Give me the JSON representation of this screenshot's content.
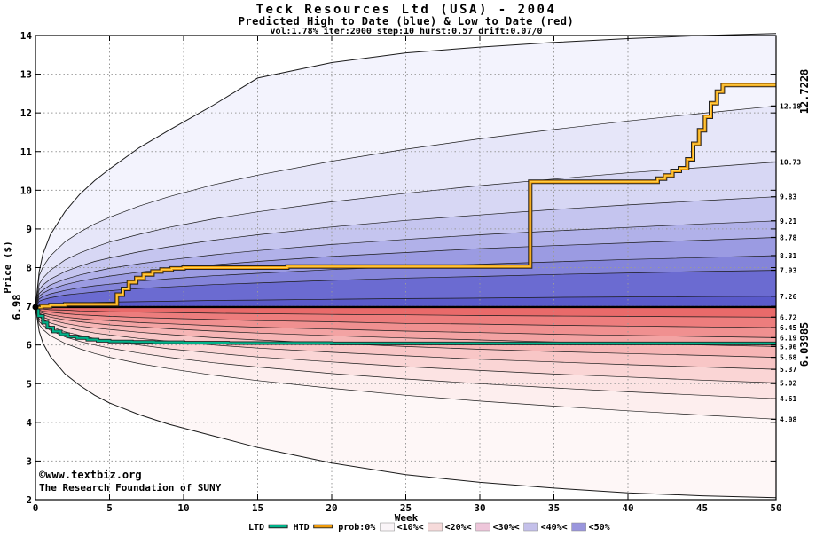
{
  "chart_data": {
    "type": "area",
    "title": "Teck Resources Ltd (USA) - 2004",
    "subtitle": "Predicted High to Date (blue) &  Low to Date (red)",
    "params": "vol:1.78% iter:2000 step:10 hurst:0.57 drift:0.07/0",
    "x_axis": {
      "label": "Week",
      "min": 0,
      "max": 50,
      "ticks": [
        0,
        5,
        10,
        15,
        20,
        25,
        30,
        35,
        40,
        45,
        50
      ]
    },
    "y_axis": {
      "label": "Price ($)",
      "min": 2,
      "max": 14,
      "ticks": [
        2,
        3,
        4,
        5,
        6,
        7,
        8,
        9,
        10,
        11,
        12,
        13,
        14
      ]
    },
    "grid_color": "#9a9a9a",
    "watermark_color": "#2323bb",
    "start_price": 6.98,
    "start_price_label": "6.98",
    "sample_weeks": [
      0,
      0.25,
      0.5,
      1,
      2,
      3,
      4,
      5,
      7,
      9,
      12,
      15,
      20,
      25,
      30,
      35,
      40,
      45,
      50
    ],
    "high_envelope": [
      6.98,
      7.9,
      8.35,
      8.85,
      9.45,
      9.9,
      10.25,
      10.55,
      11.1,
      11.55,
      12.2,
      12.9,
      13.3,
      13.55,
      13.7,
      13.82,
      13.92,
      14.0,
      14.05
    ],
    "high_boundaries": [
      {
        "label": "12.18",
        "values": [
          6.98,
          7.79,
          8.02,
          8.3,
          8.67,
          8.92,
          9.13,
          9.3,
          9.59,
          9.83,
          10.14,
          10.39,
          10.75,
          11.06,
          11.33,
          11.57,
          11.79,
          11.99,
          12.18
        ]
      },
      {
        "label": "10.73",
        "values": [
          6.98,
          7.57,
          7.73,
          7.93,
          8.2,
          8.38,
          8.53,
          8.66,
          8.86,
          9.04,
          9.26,
          9.44,
          9.7,
          9.92,
          10.12,
          10.29,
          10.45,
          10.59,
          10.73
        ]
      },
      {
        "label": "9.83",
        "values": [
          6.98,
          7.43,
          7.55,
          7.7,
          7.9,
          8.04,
          8.16,
          8.25,
          8.41,
          8.54,
          8.71,
          8.85,
          9.05,
          9.22,
          9.36,
          9.5,
          9.62,
          9.73,
          9.83
        ]
      },
      {
        "label": "9.21",
        "values": [
          6.98,
          7.33,
          7.42,
          7.55,
          7.7,
          7.81,
          7.9,
          7.98,
          8.1,
          8.2,
          8.33,
          8.44,
          8.6,
          8.73,
          8.85,
          8.95,
          9.04,
          9.13,
          9.21
        ]
      },
      {
        "label": "8.78",
        "values": [
          6.98,
          7.26,
          7.34,
          7.44,
          7.56,
          7.65,
          7.72,
          7.78,
          7.88,
          7.97,
          8.07,
          8.16,
          8.29,
          8.39,
          8.49,
          8.57,
          8.64,
          8.71,
          8.78
        ]
      },
      {
        "label": "8.31",
        "values": [
          6.98,
          7.19,
          7.25,
          7.32,
          7.41,
          7.48,
          7.53,
          7.57,
          7.65,
          7.71,
          7.79,
          7.85,
          7.95,
          8.02,
          8.09,
          8.15,
          8.21,
          8.26,
          8.31
        ]
      },
      {
        "label": "7.93",
        "values": [
          6.98,
          7.13,
          7.17,
          7.22,
          7.29,
          7.33,
          7.37,
          7.4,
          7.46,
          7.5,
          7.56,
          7.6,
          7.67,
          7.73,
          7.77,
          7.82,
          7.86,
          7.9,
          7.93
        ]
      },
      {
        "label": "7.26",
        "values": [
          6.98,
          7.02,
          7.04,
          7.05,
          7.07,
          7.08,
          7.1,
          7.11,
          7.12,
          7.13,
          7.15,
          7.16,
          7.18,
          7.2,
          7.21,
          7.23,
          7.24,
          7.25,
          7.26
        ]
      }
    ],
    "low_boundaries": [
      {
        "label": "6.72",
        "values": [
          6.98,
          6.94,
          6.93,
          6.91,
          6.9,
          6.88,
          6.87,
          6.86,
          6.85,
          6.84,
          6.82,
          6.81,
          6.79,
          6.78,
          6.76,
          6.75,
          6.74,
          6.73,
          6.72
        ]
      },
      {
        "label": "6.45",
        "values": [
          6.98,
          6.9,
          6.87,
          6.85,
          6.81,
          6.78,
          6.76,
          6.74,
          6.71,
          6.69,
          6.66,
          6.63,
          6.6,
          6.56,
          6.54,
          6.51,
          6.49,
          6.47,
          6.45
        ]
      },
      {
        "label": "6.19",
        "values": [
          6.98,
          6.86,
          6.82,
          6.78,
          6.72,
          6.68,
          6.65,
          6.63,
          6.58,
          6.55,
          6.5,
          6.46,
          6.41,
          6.36,
          6.32,
          6.28,
          6.25,
          6.22,
          6.19
        ]
      },
      {
        "label": "5.96",
        "values": [
          6.98,
          6.82,
          6.78,
          6.72,
          6.65,
          6.6,
          6.56,
          6.52,
          6.47,
          6.42,
          6.36,
          6.31,
          6.24,
          6.18,
          6.13,
          6.08,
          6.04,
          6.0,
          5.96
        ]
      },
      {
        "label": "5.68",
        "values": [
          6.98,
          6.78,
          6.72,
          6.65,
          6.56,
          6.49,
          6.44,
          6.4,
          6.33,
          6.27,
          6.19,
          6.13,
          6.04,
          5.96,
          5.89,
          5.83,
          5.78,
          5.73,
          5.68
        ]
      },
      {
        "label": "5.37",
        "values": [
          6.98,
          6.73,
          6.66,
          6.57,
          6.46,
          6.38,
          6.31,
          6.26,
          6.17,
          6.1,
          6.0,
          5.92,
          5.81,
          5.72,
          5.63,
          5.56,
          5.49,
          5.43,
          5.37
        ]
      },
      {
        "label": "5.02",
        "values": [
          6.98,
          6.67,
          6.59,
          6.48,
          6.34,
          6.25,
          6.17,
          6.1,
          6.0,
          5.9,
          5.79,
          5.69,
          5.56,
          5.44,
          5.34,
          5.25,
          5.17,
          5.09,
          5.02
        ]
      },
      {
        "label": "4.61",
        "values": [
          6.98,
          6.61,
          6.51,
          6.38,
          6.21,
          6.09,
          6.0,
          5.92,
          5.79,
          5.68,
          5.54,
          5.43,
          5.26,
          5.12,
          5.0,
          4.89,
          4.79,
          4.7,
          4.61
        ]
      },
      {
        "label": "4.08",
        "values": [
          6.98,
          6.53,
          6.4,
          6.24,
          6.04,
          5.9,
          5.78,
          5.68,
          5.52,
          5.39,
          5.22,
          5.08,
          4.88,
          4.7,
          4.55,
          4.42,
          4.3,
          4.19,
          4.08
        ]
      }
    ],
    "low_envelope": [
      6.98,
      6.35,
      6.05,
      5.7,
      5.25,
      4.95,
      4.7,
      4.5,
      4.2,
      3.95,
      3.65,
      3.35,
      2.95,
      2.65,
      2.45,
      2.3,
      2.18,
      2.1,
      2.05
    ],
    "band_colors_high": [
      "#f3f3fd",
      "#e6e6f9",
      "#d7d7f4",
      "#c5c5ef",
      "#b1b1e9",
      "#9b9be2",
      "#8484da",
      "#6b6bd1",
      "#5a5acb"
    ],
    "band_colors_low": [
      "#e96a6a",
      "#ed7d7d",
      "#f09090",
      "#f3a3a3",
      "#f6b5b5",
      "#f8c6c6",
      "#fad5d5",
      "#fce3e3",
      "#fdeeee",
      "#fef7f7"
    ],
    "htd": {
      "name": "HTD",
      "color": "#ef9b0b",
      "highlight": "#ffd34d",
      "label_color": "#a08000",
      "end_label": "12.7228",
      "steps": [
        [
          0,
          6.98
        ],
        [
          0.4,
          7.0
        ],
        [
          1.0,
          7.03
        ],
        [
          2.0,
          7.05
        ],
        [
          5.5,
          7.3
        ],
        [
          5.9,
          7.45
        ],
        [
          6.3,
          7.62
        ],
        [
          6.8,
          7.73
        ],
        [
          7.3,
          7.82
        ],
        [
          7.9,
          7.9
        ],
        [
          8.5,
          7.95
        ],
        [
          9.2,
          7.98
        ],
        [
          10.0,
          8.0
        ],
        [
          17.0,
          8.03
        ],
        [
          33.4,
          10.22
        ],
        [
          42.0,
          10.3
        ],
        [
          42.5,
          10.38
        ],
        [
          43.0,
          10.5
        ],
        [
          43.5,
          10.57
        ],
        [
          44.0,
          10.8
        ],
        [
          44.4,
          11.2
        ],
        [
          44.8,
          11.55
        ],
        [
          45.2,
          11.9
        ],
        [
          45.6,
          12.25
        ],
        [
          46.0,
          12.55
        ],
        [
          46.4,
          12.72
        ],
        [
          50,
          12.72
        ]
      ]
    },
    "ltd": {
      "name": "LTD",
      "color": "#00b38a",
      "label_color": "#00917a",
      "end_label": "6.03985",
      "steps": [
        [
          0,
          6.98
        ],
        [
          0.2,
          6.75
        ],
        [
          0.5,
          6.58
        ],
        [
          0.8,
          6.45
        ],
        [
          1.2,
          6.35
        ],
        [
          1.7,
          6.28
        ],
        [
          2.2,
          6.22
        ],
        [
          2.8,
          6.18
        ],
        [
          3.5,
          6.14
        ],
        [
          4.2,
          6.11
        ],
        [
          5.0,
          6.09
        ],
        [
          6.5,
          6.08
        ],
        [
          8.0,
          6.07
        ],
        [
          10.0,
          6.06
        ],
        [
          13.0,
          6.05
        ],
        [
          19.0,
          6.05
        ],
        [
          20.0,
          6.04
        ],
        [
          50,
          6.04
        ]
      ]
    },
    "legend": {
      "ltd_label": "LTD",
      "htd_label": "HTD",
      "prob_labels": [
        "prob:0%",
        "<10%<",
        "<20%<",
        "<30%<",
        "<40%<",
        "<50%"
      ],
      "swatch_colors": [
        "#faf5f8",
        "#f6dada",
        "#eec6da",
        "#c4c0ea",
        "#9a96dd"
      ]
    },
    "watermark_line1": "©www.textbiz.org",
    "watermark_line2": "The Research Foundation of SUNY"
  }
}
